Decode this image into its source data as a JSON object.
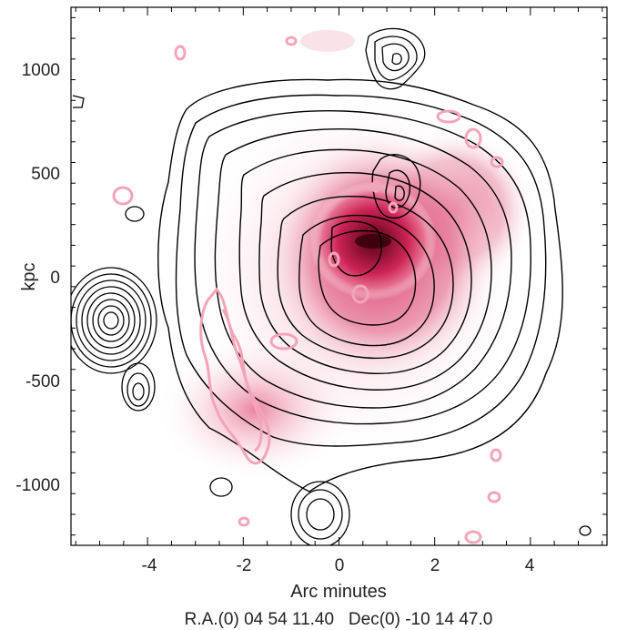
{
  "figure": {
    "x_axis_label": "Arc minutes",
    "y_axis_label": "kpc",
    "caption": "R.A.(0) 04 54 11.40   Dec(0) -10 14 47.0",
    "x_ticks": [
      "-4",
      "-2",
      "0",
      "2",
      "4"
    ],
    "y_ticks": [
      "1000",
      "500",
      "0",
      "-500",
      "-1000"
    ],
    "x_range": [
      -5.6,
      5.6
    ],
    "y_range": [
      -1300,
      1300
    ],
    "colors": {
      "heatmap_core": "#6a0a22",
      "heatmap_mid": "#d2275a",
      "heatmap_outer": "#f4b6c6",
      "contour_black": "#000000",
      "contour_pink": "#f3a5b8"
    }
  }
}
